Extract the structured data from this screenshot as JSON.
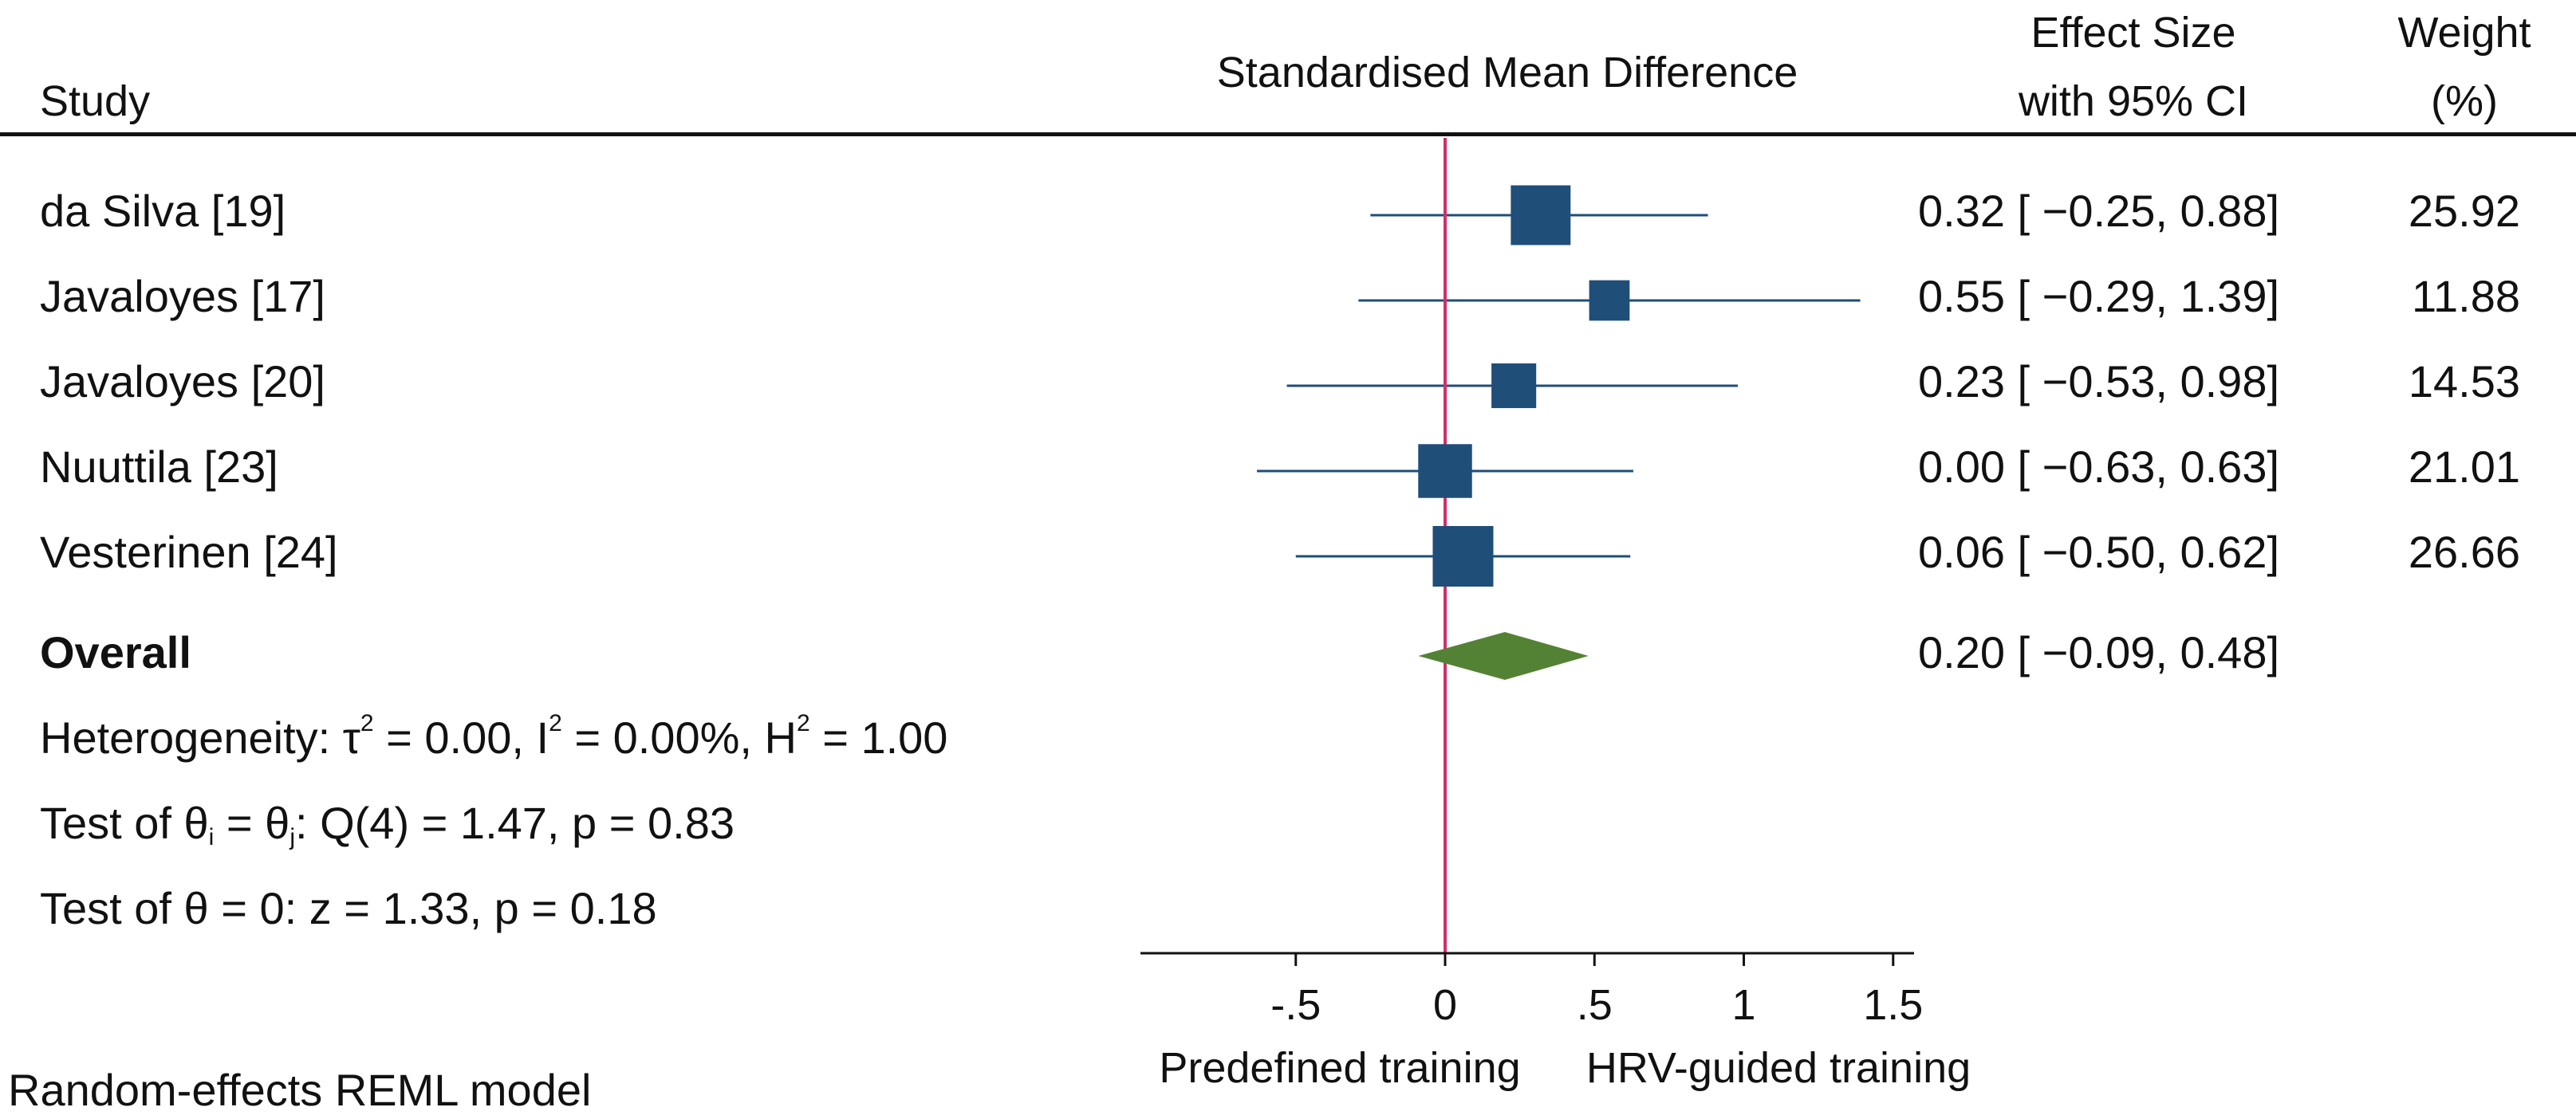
{
  "chart_data": {
    "type": "forest",
    "title": "",
    "headers": {
      "study": "Study",
      "plot": "Standardised Mean Difference",
      "effect_line1": "Effect Size",
      "effect_line2": "with 95% CI",
      "weight_line1": "Weight",
      "weight_line2": "(%)"
    },
    "studies": [
      {
        "name": "da Silva [19]",
        "effect": 0.32,
        "lo": -0.25,
        "hi": 0.88,
        "ci_text": "0.32 [ −0.25,  0.88]",
        "weight": 25.92,
        "weight_text": "25.92"
      },
      {
        "name": "Javaloyes [17]",
        "effect": 0.55,
        "lo": -0.29,
        "hi": 1.39,
        "ci_text": "0.55 [ −0.29,  1.39]",
        "weight": 11.88,
        "weight_text": "11.88"
      },
      {
        "name": "Javaloyes [20]",
        "effect": 0.23,
        "lo": -0.53,
        "hi": 0.98,
        "ci_text": "0.23 [ −0.53,  0.98]",
        "weight": 14.53,
        "weight_text": "14.53"
      },
      {
        "name": "Nuuttila [23]",
        "effect": 0.0,
        "lo": -0.63,
        "hi": 0.63,
        "ci_text": "0.00 [ −0.63,  0.63]",
        "weight": 21.01,
        "weight_text": "21.01"
      },
      {
        "name": "Vesterinen [24]",
        "effect": 0.06,
        "lo": -0.5,
        "hi": 0.62,
        "ci_text": "0.06 [ −0.50,  0.62]",
        "weight": 26.66,
        "weight_text": "26.66"
      }
    ],
    "overall": {
      "name": "Overall",
      "effect": 0.2,
      "lo": -0.09,
      "hi": 0.48,
      "ci_text": "0.20 [ −0.09,  0.48]"
    },
    "stats": {
      "het_prefix": "Heterogeneity: τ",
      "het_tau_sup": "2",
      "het_mid1": " = 0.00, I",
      "het_i_sup": "2",
      "het_mid2": " = 0.00%, H",
      "het_h_sup": "2",
      "het_end": " = 1.00",
      "test1_prefix": "Test of θ",
      "test1_sub_i": "i",
      "test1_mid": " = θ",
      "test1_sub_j": "j",
      "test1_end": ": Q(4) = 1.47, p = 0.83",
      "test2": "Test of θ = 0: z = 1.33, p = 0.18"
    },
    "x_axis": {
      "ticks": [
        -0.5,
        0,
        0.5,
        1,
        1.5
      ],
      "tick_labels": [
        "-.5",
        "0",
        ".5",
        "1",
        "1.5"
      ],
      "xlim": [
        -1.02,
        1.57
      ],
      "left_label": "Predefined training",
      "right_label": "HRV-guided training"
    },
    "footnote": "Random-effects REML model",
    "colors": {
      "marker": "#1f4e79",
      "diamond": "#548235",
      "null_line": "#d0306a",
      "axis": "#111111"
    }
  }
}
